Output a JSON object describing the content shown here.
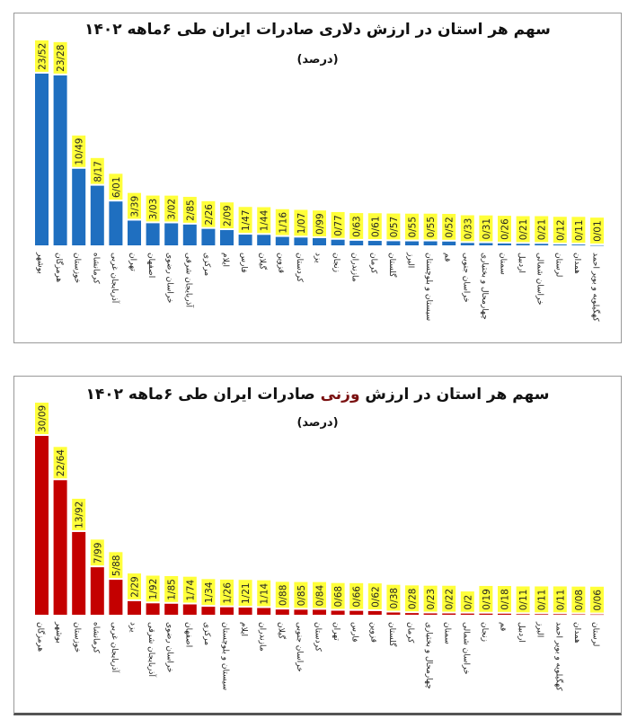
{
  "chart_data": [
    {
      "type": "bar",
      "title": "سهم هر استان در ارزش دلاری صادرات ایران طی ۶ماهه ۱۴۰۲",
      "subtitle": "(درصد)",
      "color": "#1f6fc0",
      "label_bg": "#ffff3a",
      "categories": [
        "بوشهر",
        "هرمزگان",
        "خوزستان",
        "کرمانشاه",
        "آذربایجان غربی",
        "تهران",
        "اصفهان",
        "خراسان رضوی",
        "آذربایجان شرقی",
        "مرکزی",
        "ایلام",
        "فارس",
        "گیلان",
        "قزوین",
        "کردستان",
        "یزد",
        "زنجان",
        "مازندران",
        "کرمان",
        "گلستان",
        "البرز",
        "سیستان و بلوچستان",
        "قم",
        "خراسان جنوبی",
        "چهارمحال و بختیاری",
        "سمنان",
        "اردبیل",
        "خراسان شمالی",
        "لرستان",
        "همدان",
        "کهگیلویه و بویر احمد"
      ],
      "values": [
        23.52,
        23.28,
        10.49,
        8.17,
        6.01,
        3.39,
        3.03,
        3.02,
        2.85,
        2.26,
        2.09,
        1.47,
        1.44,
        1.16,
        1.07,
        0.99,
        0.77,
        0.63,
        0.61,
        0.57,
        0.55,
        0.55,
        0.52,
        0.33,
        0.31,
        0.26,
        0.21,
        0.21,
        0.12,
        0.11,
        0.01
      ],
      "value_labels": [
        "23/52",
        "23/28",
        "10/49",
        "8/17",
        "6/01",
        "3/39",
        "3/03",
        "3/02",
        "2/85",
        "2/26",
        "2/09",
        "1/47",
        "1/44",
        "1/16",
        "1/07",
        "0/99",
        "0/77",
        "0/63",
        "0/61",
        "0/57",
        "0/55",
        "0/55",
        "0/52",
        "0/33",
        "0/31",
        "0/26",
        "0/21",
        "0/21",
        "0/12",
        "0/11",
        "0/01"
      ],
      "ylim": [
        0,
        24
      ]
    },
    {
      "type": "bar",
      "title_parts": [
        "سهم هر استان در ارزش ",
        "وزنی",
        " صادرات ایران طی ۶ماهه ۱۴۰۲"
      ],
      "subtitle": "(درصد)",
      "color": "#c40000",
      "label_bg": "#ffff3a",
      "categories": [
        "هرمزگان",
        "بوشهر",
        "خوزستان",
        "کرمانشاه",
        "آذربایجان غربی",
        "یزد",
        "آذربایجان شرقی",
        "خراسان رضوی",
        "اصفهان",
        "مرکزی",
        "سیستان و بلوچستان",
        "ایلام",
        "مازندران",
        "گیلان",
        "خراسان جنوبی",
        "کردستان",
        "تهران",
        "فارس",
        "قزوین",
        "گلستان",
        "کرمان",
        "چهارمحال و بختیاری",
        "سمنان",
        "خراسان شمالی",
        "زنجان",
        "قم",
        "اردبیل",
        "البرز",
        "کهگیلویه و بویر احمد",
        "همدان",
        "لرستان"
      ],
      "values": [
        30.09,
        22.64,
        13.92,
        7.99,
        5.88,
        2.29,
        1.92,
        1.85,
        1.74,
        1.34,
        1.26,
        1.21,
        1.14,
        0.88,
        0.85,
        0.84,
        0.68,
        0.66,
        0.62,
        0.38,
        0.28,
        0.23,
        0.22,
        0.2,
        0.19,
        0.18,
        0.11,
        0.11,
        0.11,
        0.08,
        0.06
      ],
      "value_labels": [
        "30/09",
        "22/64",
        "13/92",
        "7/99",
        "5/88",
        "2/29",
        "1/92",
        "1/85",
        "1/74",
        "1/34",
        "1/26",
        "1/21",
        "1/14",
        "0/88",
        "0/85",
        "0/84",
        "0/68",
        "0/66",
        "0/62",
        "0/38",
        "0/28",
        "0/23",
        "0/22",
        "0/2",
        "0/19",
        "0/18",
        "0/11",
        "0/11",
        "0/11",
        "0/08",
        "0/06"
      ],
      "ylim": [
        0,
        31
      ]
    }
  ]
}
